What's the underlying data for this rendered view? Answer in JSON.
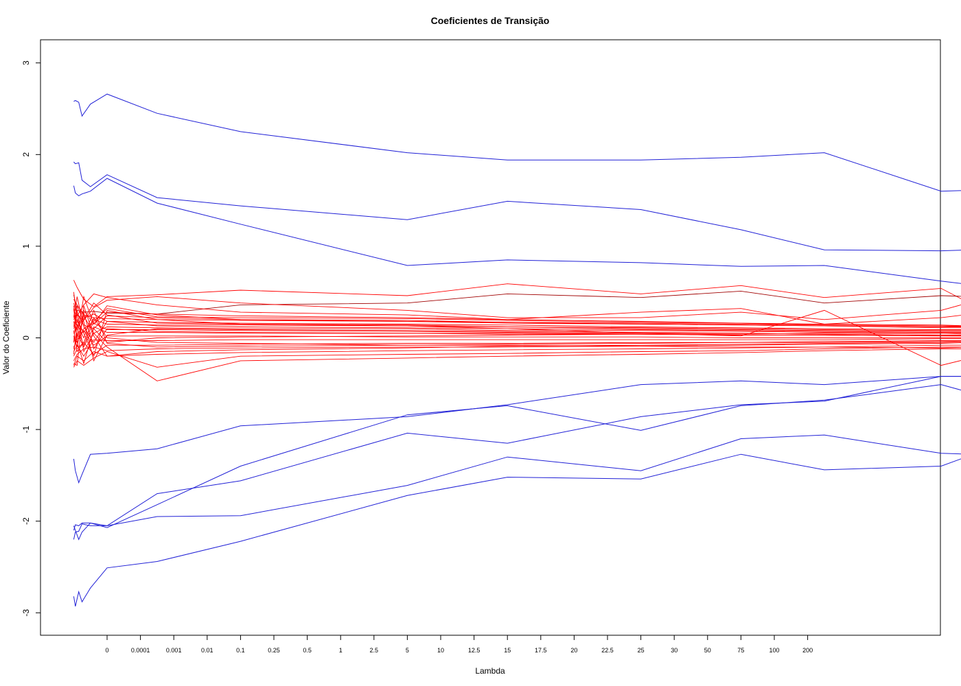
{
  "chart_data": {
    "type": "line",
    "title": "Coeficientes de Transição",
    "xlabel": "Lambda",
    "ylabel": "Valor do Coeficiente",
    "x_tick_labels": [
      "0",
      "0.0001",
      "0.001",
      "0.01",
      "0.1",
      "0.25",
      "0.5",
      "1",
      "2.5",
      "5",
      "10",
      "12.5",
      "15",
      "17.5",
      "20",
      "22.5",
      "25",
      "30",
      "50",
      "75",
      "100",
      "200"
    ],
    "y_ticks": [
      -3,
      -2,
      -1,
      0,
      1,
      2,
      3
    ],
    "ylim": [
      -3.25,
      3.25
    ],
    "grid": false,
    "legend": "none",
    "colors": {
      "blue": "#1f1fd6",
      "red": "#ff0000",
      "darkred": "#a00000",
      "axis": "#000000"
    },
    "x_note": "x values given as positions relative to the printed Lambda ticks (0 = tick '0', 1 = tick '0.0001', ...)",
    "blue_series": [
      {
        "x": [
          -1,
          -0.95,
          -0.85,
          -0.75,
          -0.5,
          0,
          1.5,
          4,
          9,
          12,
          16,
          19,
          21.5,
          25,
          25.9
        ],
        "y": [
          2.58,
          2.59,
          2.57,
          2.42,
          2.55,
          2.66,
          2.45,
          2.25,
          2.02,
          1.94,
          1.94,
          1.97,
          2.02,
          1.6,
          1.61
        ]
      },
      {
        "x": [
          -1,
          -0.95,
          -0.85,
          -0.75,
          -0.5,
          0,
          1.5,
          4,
          9,
          12,
          16,
          19,
          21.5,
          25,
          25.9
        ],
        "y": [
          1.92,
          1.9,
          1.91,
          1.72,
          1.65,
          1.78,
          1.53,
          1.44,
          1.29,
          1.49,
          1.4,
          1.18,
          0.96,
          0.95,
          0.96
        ]
      },
      {
        "x": [
          -1,
          -0.95,
          -0.85,
          -0.75,
          -0.5,
          0,
          1.5,
          4,
          9,
          12,
          16,
          19,
          21.5,
          25,
          25.9
        ],
        "y": [
          1.66,
          1.58,
          1.55,
          1.57,
          1.6,
          1.74,
          1.47,
          1.24,
          0.79,
          0.85,
          0.82,
          0.78,
          0.79,
          0.62,
          0.58
        ]
      },
      {
        "x": [
          -1,
          -0.95,
          -0.85,
          -0.75,
          -0.5,
          0,
          1.5,
          4,
          9,
          12,
          16,
          19,
          21.5,
          25,
          25.9
        ],
        "y": [
          -1.32,
          -1.45,
          -1.58,
          -1.49,
          -1.27,
          -1.26,
          -1.21,
          -0.96,
          -0.86,
          -0.73,
          -0.51,
          -0.47,
          -0.51,
          -0.42,
          -0.42
        ]
      },
      {
        "x": [
          -1,
          -0.95,
          -0.85,
          -0.75,
          -0.5,
          0,
          1.5,
          4,
          9,
          12,
          16,
          19,
          21.5,
          25,
          25.9
        ],
        "y": [
          -2.05,
          -2.1,
          -2.2,
          -2.12,
          -2.02,
          -2.05,
          -1.7,
          -1.56,
          -1.04,
          -1.15,
          -0.86,
          -0.73,
          -0.69,
          -0.42,
          -0.42
        ]
      },
      {
        "x": [
          -1,
          -0.95,
          -0.85,
          -0.75,
          -0.5,
          0,
          1.5,
          4,
          9,
          12,
          16,
          19,
          21.5,
          25,
          25.9
        ],
        "y": [
          -2.1,
          -2.04,
          -2.05,
          -2.02,
          -2.02,
          -2.07,
          -1.82,
          -1.4,
          -0.84,
          -0.74,
          -1.01,
          -0.74,
          -0.68,
          -0.51,
          -0.6
        ]
      },
      {
        "x": [
          -1,
          -0.95,
          -0.85,
          -0.75,
          -0.5,
          0,
          1.5,
          4,
          9,
          12,
          16,
          19,
          21.5,
          25,
          25.9
        ],
        "y": [
          -2.2,
          -2.12,
          -2.11,
          -2.03,
          -2.05,
          -2.05,
          -1.95,
          -1.94,
          -1.61,
          -1.3,
          -1.45,
          -1.1,
          -1.06,
          -1.26,
          -1.27
        ]
      },
      {
        "x": [
          -1,
          -0.95,
          -0.85,
          -0.75,
          -0.5,
          0,
          1.5,
          4,
          9,
          12,
          16,
          19,
          21.5,
          25,
          25.9
        ],
        "y": [
          -2.82,
          -2.93,
          -2.77,
          -2.88,
          -2.73,
          -2.51,
          -2.44,
          -2.22,
          -1.72,
          -1.52,
          -1.54,
          -1.27,
          -1.44,
          -1.4,
          -1.28
        ]
      }
    ],
    "red_series": {
      "x": [
        -1,
        -0.9,
        -0.7,
        -0.4,
        0,
        1.5,
        4,
        9,
        12,
        16,
        19,
        21.5,
        25,
        25.9
      ],
      "lines": [
        [
          0.63,
          0.55,
          0.42,
          0.34,
          0.45,
          0.47,
          0.52,
          0.46,
          0.59,
          0.48,
          0.57,
          0.44,
          0.54,
          0.37
        ],
        [
          0.47,
          0.3,
          0.28,
          0.29,
          0.27,
          0.26,
          0.36,
          0.38,
          0.48,
          0.44,
          0.51,
          0.38,
          0.46,
          0.45
        ],
        [
          0.38,
          0.25,
          0.19,
          0.33,
          0.41,
          0.45,
          0.38,
          0.3,
          0.22,
          0.22,
          0.28,
          0.2,
          0.3,
          0.39
        ],
        [
          0.3,
          0.24,
          0.36,
          0.48,
          0.44,
          0.36,
          0.28,
          0.25,
          0.2,
          0.28,
          0.32,
          0.15,
          0.22,
          0.26
        ],
        [
          0.25,
          0.18,
          0.3,
          0.15,
          0.28,
          0.26,
          0.24,
          0.22,
          0.2,
          0.18,
          0.16,
          0.14,
          0.13,
          0.13
        ],
        [
          0.2,
          0.28,
          0.14,
          0.1,
          0.24,
          0.22,
          0.2,
          0.19,
          0.17,
          0.15,
          0.14,
          0.13,
          0.11,
          0.11
        ],
        [
          0.15,
          0.1,
          0.22,
          0.26,
          0.18,
          0.17,
          0.16,
          0.15,
          0.14,
          0.12,
          0.11,
          0.1,
          0.09,
          0.09
        ],
        [
          0.1,
          0.18,
          0.06,
          0.2,
          0.15,
          0.14,
          0.14,
          0.13,
          0.12,
          0.1,
          0.09,
          0.08,
          0.07,
          0.07
        ],
        [
          0.05,
          0.12,
          0.24,
          0.05,
          0.12,
          0.11,
          0.1,
          0.1,
          0.08,
          0.08,
          0.07,
          0.06,
          0.05,
          0.05
        ],
        [
          0.0,
          -0.05,
          0.1,
          0.16,
          0.09,
          0.09,
          0.08,
          0.07,
          0.06,
          0.05,
          0.05,
          0.04,
          0.03,
          0.03
        ],
        [
          -0.05,
          0.05,
          -0.1,
          0.12,
          0.06,
          0.06,
          0.05,
          0.05,
          0.04,
          0.04,
          0.03,
          0.03,
          0.02,
          0.02
        ],
        [
          -0.1,
          -0.02,
          0.08,
          -0.08,
          0.02,
          0.02,
          0.02,
          0.01,
          0.01,
          0.01,
          0.0,
          0.0,
          0.0,
          0.0
        ],
        [
          -0.15,
          -0.08,
          -0.2,
          -0.02,
          -0.03,
          -0.03,
          -0.02,
          -0.02,
          -0.02,
          -0.02,
          -0.02,
          -0.02,
          -0.01,
          -0.01
        ],
        [
          -0.2,
          -0.12,
          -0.05,
          -0.18,
          -0.08,
          -0.08,
          -0.07,
          -0.06,
          -0.06,
          -0.05,
          -0.05,
          -0.04,
          -0.03,
          -0.03
        ],
        [
          -0.25,
          -0.18,
          -0.12,
          -0.1,
          -0.14,
          -0.12,
          -0.11,
          -0.1,
          -0.1,
          -0.09,
          -0.08,
          -0.07,
          -0.06,
          -0.05
        ],
        [
          -0.3,
          -0.2,
          -0.25,
          -0.15,
          -0.2,
          -0.18,
          -0.16,
          -0.14,
          -0.13,
          -0.12,
          -0.11,
          -0.1,
          -0.08,
          -0.08
        ],
        [
          -0.32,
          -0.25,
          -0.3,
          -0.22,
          -0.15,
          -0.32,
          -0.2,
          -0.18,
          -0.17,
          -0.15,
          -0.14,
          -0.12,
          -0.1,
          -0.1
        ],
        [
          0.12,
          0.3,
          -0.15,
          0.05,
          -0.1,
          -0.47,
          -0.25,
          -0.22,
          -0.2,
          -0.18,
          -0.16,
          -0.14,
          -0.12,
          -0.12
        ],
        [
          0.5,
          0.2,
          0.05,
          -0.2,
          0.3,
          0.2,
          0.15,
          0.13,
          0.1,
          0.05,
          0.02,
          0.3,
          -0.3,
          -0.22
        ],
        [
          -0.12,
          0.02,
          0.45,
          0.15,
          0.35,
          0.25,
          0.2,
          0.18,
          0.16,
          0.15,
          0.14,
          0.13,
          0.12,
          0.12
        ],
        [
          0.42,
          0.36,
          0.25,
          0.22,
          0.21,
          0.2,
          0.19,
          0.18,
          0.17,
          0.16,
          0.15,
          0.14,
          0.13,
          0.12
        ],
        [
          0.08,
          -0.15,
          -0.05,
          0.22,
          0.0,
          -0.05,
          -0.06,
          -0.08,
          -0.08,
          -0.09,
          -0.1,
          -0.1,
          -0.11,
          -0.1
        ],
        [
          -0.05,
          0.35,
          0.18,
          -0.25,
          0.03,
          0.1,
          0.09,
          0.08,
          0.07,
          0.06,
          0.05,
          0.04,
          0.03,
          0.02
        ],
        [
          0.32,
          -0.05,
          -0.28,
          0.1,
          -0.05,
          0.0,
          0.01,
          0.02,
          0.03,
          0.04,
          0.04,
          0.05,
          0.05,
          0.04
        ],
        [
          -0.28,
          -0.3,
          0.35,
          0.02,
          -0.2,
          -0.15,
          -0.13,
          -0.11,
          -0.09,
          -0.08,
          -0.07,
          -0.06,
          -0.05,
          -0.04
        ],
        [
          0.22,
          0.45,
          0.12,
          -0.05,
          0.18,
          0.13,
          0.12,
          0.11,
          0.1,
          0.09,
          0.08,
          0.07,
          0.06,
          0.06
        ],
        [
          0.18,
          0.0,
          0.2,
          0.38,
          0.25,
          0.16,
          0.15,
          0.14,
          0.12,
          0.11,
          0.1,
          0.09,
          0.08,
          0.08
        ],
        [
          -0.18,
          0.15,
          0.0,
          0.3,
          -0.06,
          -0.1,
          -0.09,
          -0.08,
          -0.07,
          -0.06,
          -0.05,
          -0.05,
          -0.04,
          -0.04
        ],
        [
          0.35,
          0.1,
          -0.08,
          0.18,
          0.32,
          0.23,
          0.22,
          0.21,
          0.19,
          0.17,
          0.16,
          0.15,
          0.14,
          0.13
        ],
        [
          0.02,
          -0.1,
          0.28,
          -0.12,
          0.1,
          0.07,
          0.06,
          0.05,
          0.05,
          0.04,
          0.03,
          0.03,
          0.02,
          0.02
        ]
      ]
    }
  }
}
